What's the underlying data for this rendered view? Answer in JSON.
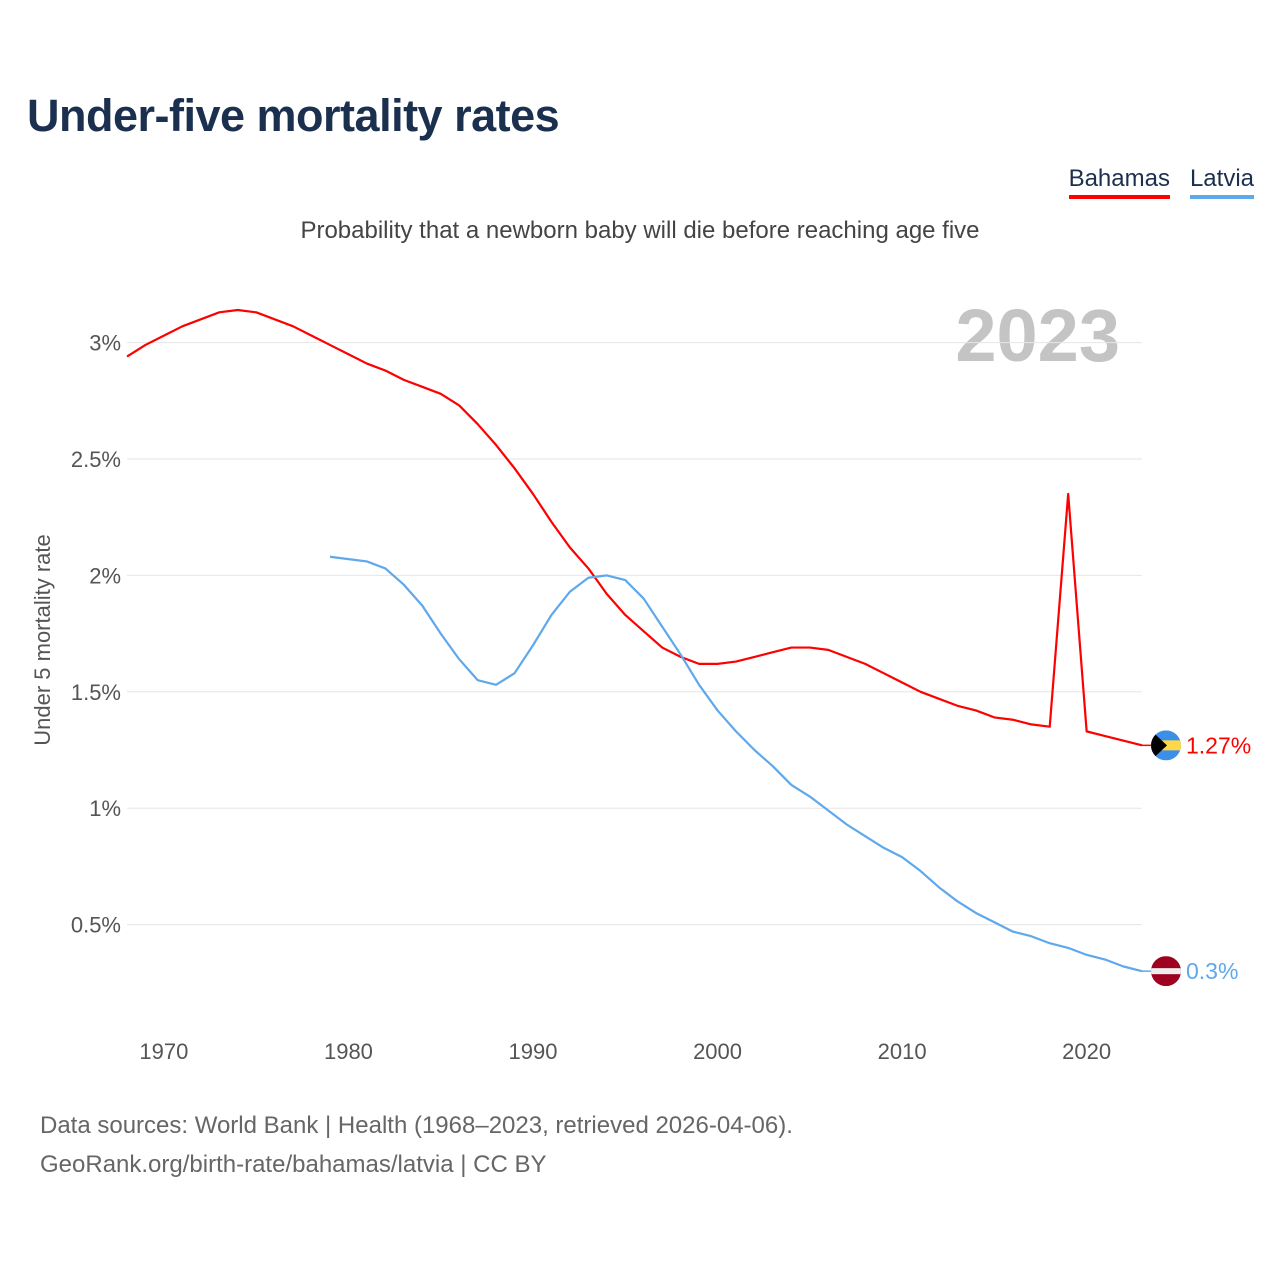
{
  "chart_data": {
    "type": "line",
    "title": "Under-five mortality rates",
    "subtitle": "Probability that a newborn baby will die before reaching age five",
    "ylabel": "Under 5 mortality rate",
    "xlabel": "",
    "year_label": "2023",
    "xlim": [
      1968,
      2023
    ],
    "ylim": [
      0,
      3.2
    ],
    "x_ticks": [
      1970,
      1980,
      1990,
      2000,
      2010,
      2020
    ],
    "y_ticks": [
      0.5,
      1,
      1.5,
      2,
      2.5,
      3
    ],
    "y_tick_labels": [
      "0.5%",
      "1%",
      "1.5%",
      "2%",
      "2.5%",
      "3%"
    ],
    "grid": true,
    "legend_position": "top-right",
    "series": [
      {
        "name": "Bahamas",
        "color": "#ff0000",
        "end_label": "1.27%",
        "flag": "bahamas-flag",
        "x_start": 1968,
        "values": [
          2.94,
          2.99,
          3.03,
          3.07,
          3.1,
          3.13,
          3.14,
          3.13,
          3.1,
          3.07,
          3.03,
          2.99,
          2.95,
          2.91,
          2.88,
          2.84,
          2.81,
          2.78,
          2.73,
          2.65,
          2.56,
          2.46,
          2.35,
          2.23,
          2.12,
          2.03,
          1.92,
          1.83,
          1.76,
          1.69,
          1.65,
          1.62,
          1.62,
          1.63,
          1.65,
          1.67,
          1.69,
          1.69,
          1.68,
          1.65,
          1.62,
          1.58,
          1.54,
          1.5,
          1.47,
          1.44,
          1.42,
          1.39,
          1.38,
          1.36,
          1.35,
          2.35,
          1.33,
          1.31,
          1.29,
          1.27
        ]
      },
      {
        "name": "Latvia",
        "color": "#5ea8ec",
        "end_label": "0.3%",
        "flag": "latvia-flag",
        "x_start": 1979,
        "values": [
          2.08,
          2.07,
          2.06,
          2.03,
          1.96,
          1.87,
          1.75,
          1.64,
          1.55,
          1.53,
          1.58,
          1.7,
          1.83,
          1.93,
          1.99,
          2.0,
          1.98,
          1.9,
          1.78,
          1.66,
          1.53,
          1.42,
          1.33,
          1.25,
          1.18,
          1.1,
          1.05,
          0.99,
          0.93,
          0.88,
          0.83,
          0.79,
          0.73,
          0.66,
          0.6,
          0.55,
          0.51,
          0.47,
          0.45,
          0.42,
          0.4,
          0.37,
          0.35,
          0.32,
          0.3
        ]
      }
    ]
  },
  "footer": {
    "line1": "Data sources: World Bank | Health (1968–2023, retrieved 2026-04-06).",
    "line2": "GeoRank.org/birth-rate/bahamas/latvia | CC BY"
  }
}
